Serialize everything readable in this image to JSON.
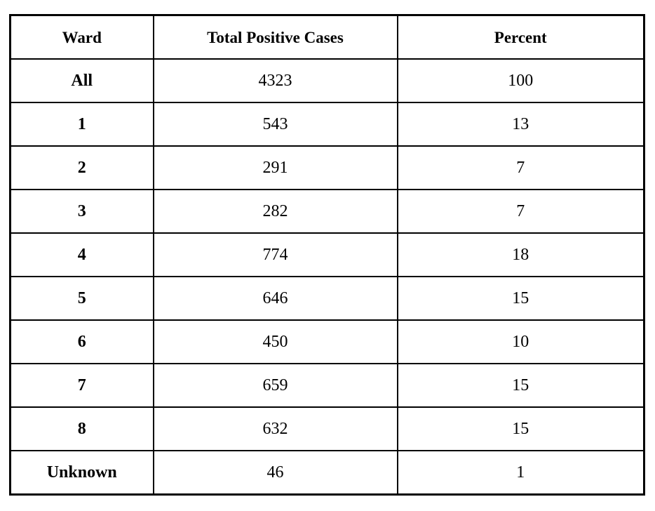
{
  "colors": {
    "background": "#ffffff",
    "border": "#000000",
    "text": "#000000"
  },
  "chart_data": {
    "type": "table",
    "columns": [
      "Ward",
      "Total Positive Cases",
      "Percent"
    ],
    "rows": [
      {
        "ward": "All",
        "total_positive_cases": 4323,
        "percent": 100
      },
      {
        "ward": "1",
        "total_positive_cases": 543,
        "percent": 13
      },
      {
        "ward": "2",
        "total_positive_cases": 291,
        "percent": 7
      },
      {
        "ward": "3",
        "total_positive_cases": 282,
        "percent": 7
      },
      {
        "ward": "4",
        "total_positive_cases": 774,
        "percent": 18
      },
      {
        "ward": "5",
        "total_positive_cases": 646,
        "percent": 15
      },
      {
        "ward": "6",
        "total_positive_cases": 450,
        "percent": 10
      },
      {
        "ward": "7",
        "total_positive_cases": 659,
        "percent": 15
      },
      {
        "ward": "8",
        "total_positive_cases": 632,
        "percent": 15
      },
      {
        "ward": "Unknown",
        "total_positive_cases": 46,
        "percent": 1
      }
    ]
  }
}
